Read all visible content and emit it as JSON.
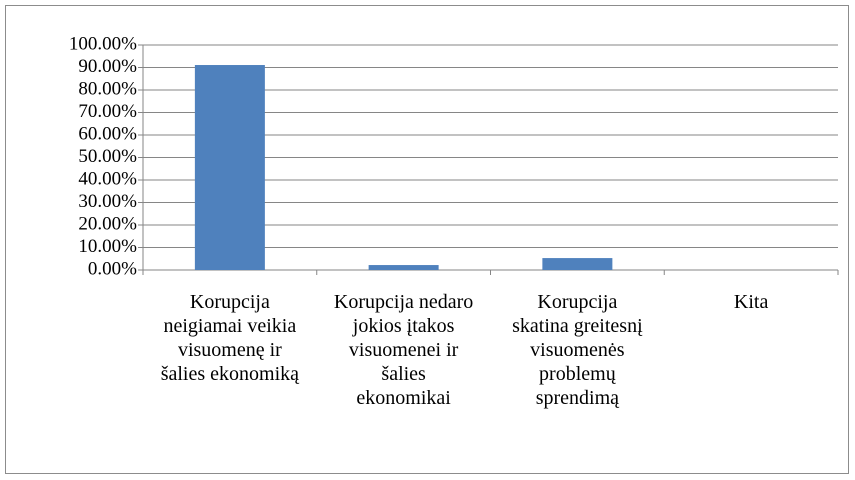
{
  "chart_data": {
    "type": "bar",
    "categories": [
      "Korupcija neigiamai veikia visuomenę ir šalies ekonomiką",
      "Korupcija nedaro jokios įtakos visuomenei ir šalies ekonomikai",
      "Korupcija skatina greitesnį visuomenės problemų sprendimą",
      "Kita"
    ],
    "values": [
      91.1,
      2.2,
      5.3,
      0
    ],
    "color": "#4f81bd",
    "ylim": [
      0,
      100
    ],
    "yticks": [
      {
        "value": 0,
        "label": "0.00%"
      },
      {
        "value": 10,
        "label": "10.00%"
      },
      {
        "value": 20,
        "label": "20.00%"
      },
      {
        "value": 30,
        "label": "30.00%"
      },
      {
        "value": 40,
        "label": "40.00%"
      },
      {
        "value": 50,
        "label": "50.00%"
      },
      {
        "value": 60,
        "label": "60.00%"
      },
      {
        "value": 70,
        "label": "70.00%"
      },
      {
        "value": 80,
        "label": "80.00%"
      },
      {
        "value": 90,
        "label": "90.00%"
      },
      {
        "value": 100,
        "label": "100.00%"
      }
    ],
    "grid": true
  }
}
